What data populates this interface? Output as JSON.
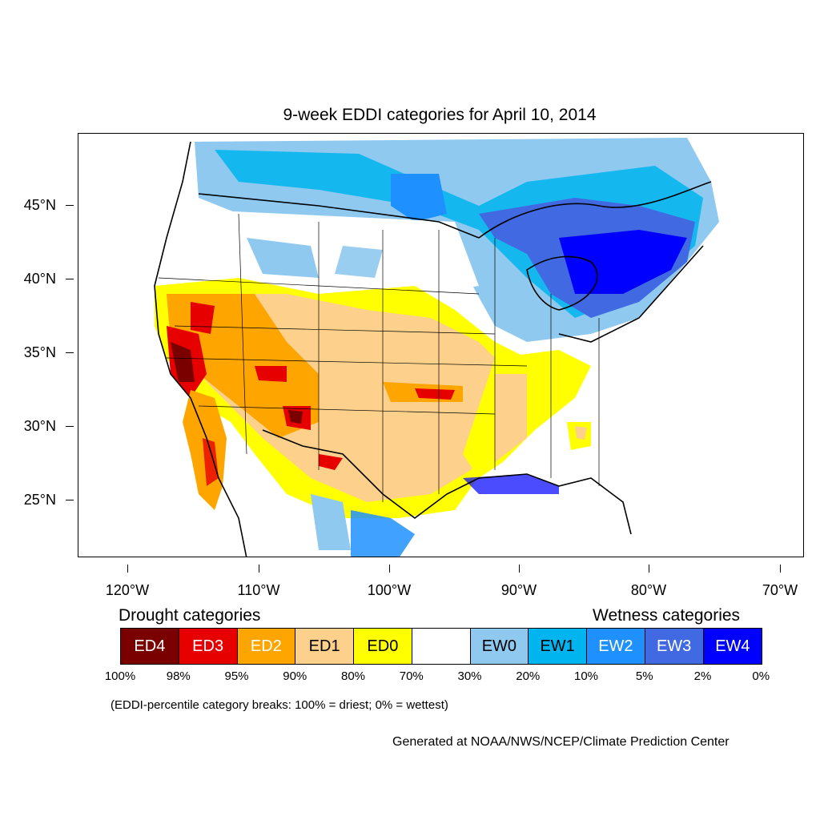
{
  "title": "9-week EDDI categories for April 10, 2014",
  "lat_labels": [
    "45°N",
    "40°N",
    "35°N",
    "30°N",
    "25°N"
  ],
  "lon_labels": [
    "120°W",
    "110°W",
    "100°W",
    "90°W",
    "80°W",
    "70°W"
  ],
  "legend": {
    "drought_heading": "Drought categories",
    "wetness_heading": "Wetness categories",
    "categories": [
      {
        "label": "ED4",
        "color": "#7a0000",
        "text_color": "#ffffff"
      },
      {
        "label": "ED3",
        "color": "#e60000",
        "text_color": "#ffffff"
      },
      {
        "label": "ED2",
        "color": "#ffa500",
        "text_color": "#ffffff"
      },
      {
        "label": "ED1",
        "color": "#fdd08c",
        "text_color": "#000000"
      },
      {
        "label": "ED0",
        "color": "#ffff00",
        "text_color": "#000000"
      },
      {
        "label": "",
        "color": "#ffffff",
        "text_color": "#000000"
      },
      {
        "label": "EW0",
        "color": "#8fc9f0",
        "text_color": "#000000"
      },
      {
        "label": "EW1",
        "color": "#00b4ef",
        "text_color": "#000000"
      },
      {
        "label": "EW2",
        "color": "#1e90ff",
        "text_color": "#ffffff"
      },
      {
        "label": "EW3",
        "color": "#4169e1",
        "text_color": "#ffffff"
      },
      {
        "label": "EW4",
        "color": "#0000ff",
        "text_color": "#ffffff"
      }
    ],
    "breaks": [
      "100%",
      "98%",
      "95%",
      "90%",
      "80%",
      "70%",
      "30%",
      "20%",
      "10%",
      "5%",
      "2%",
      "0%"
    ]
  },
  "note": "(EDDI-percentile category breaks: 100% = driest; 0% = wettest)",
  "credit": "Generated at NOAA/NWS/NCEP/Climate Prediction Center"
}
